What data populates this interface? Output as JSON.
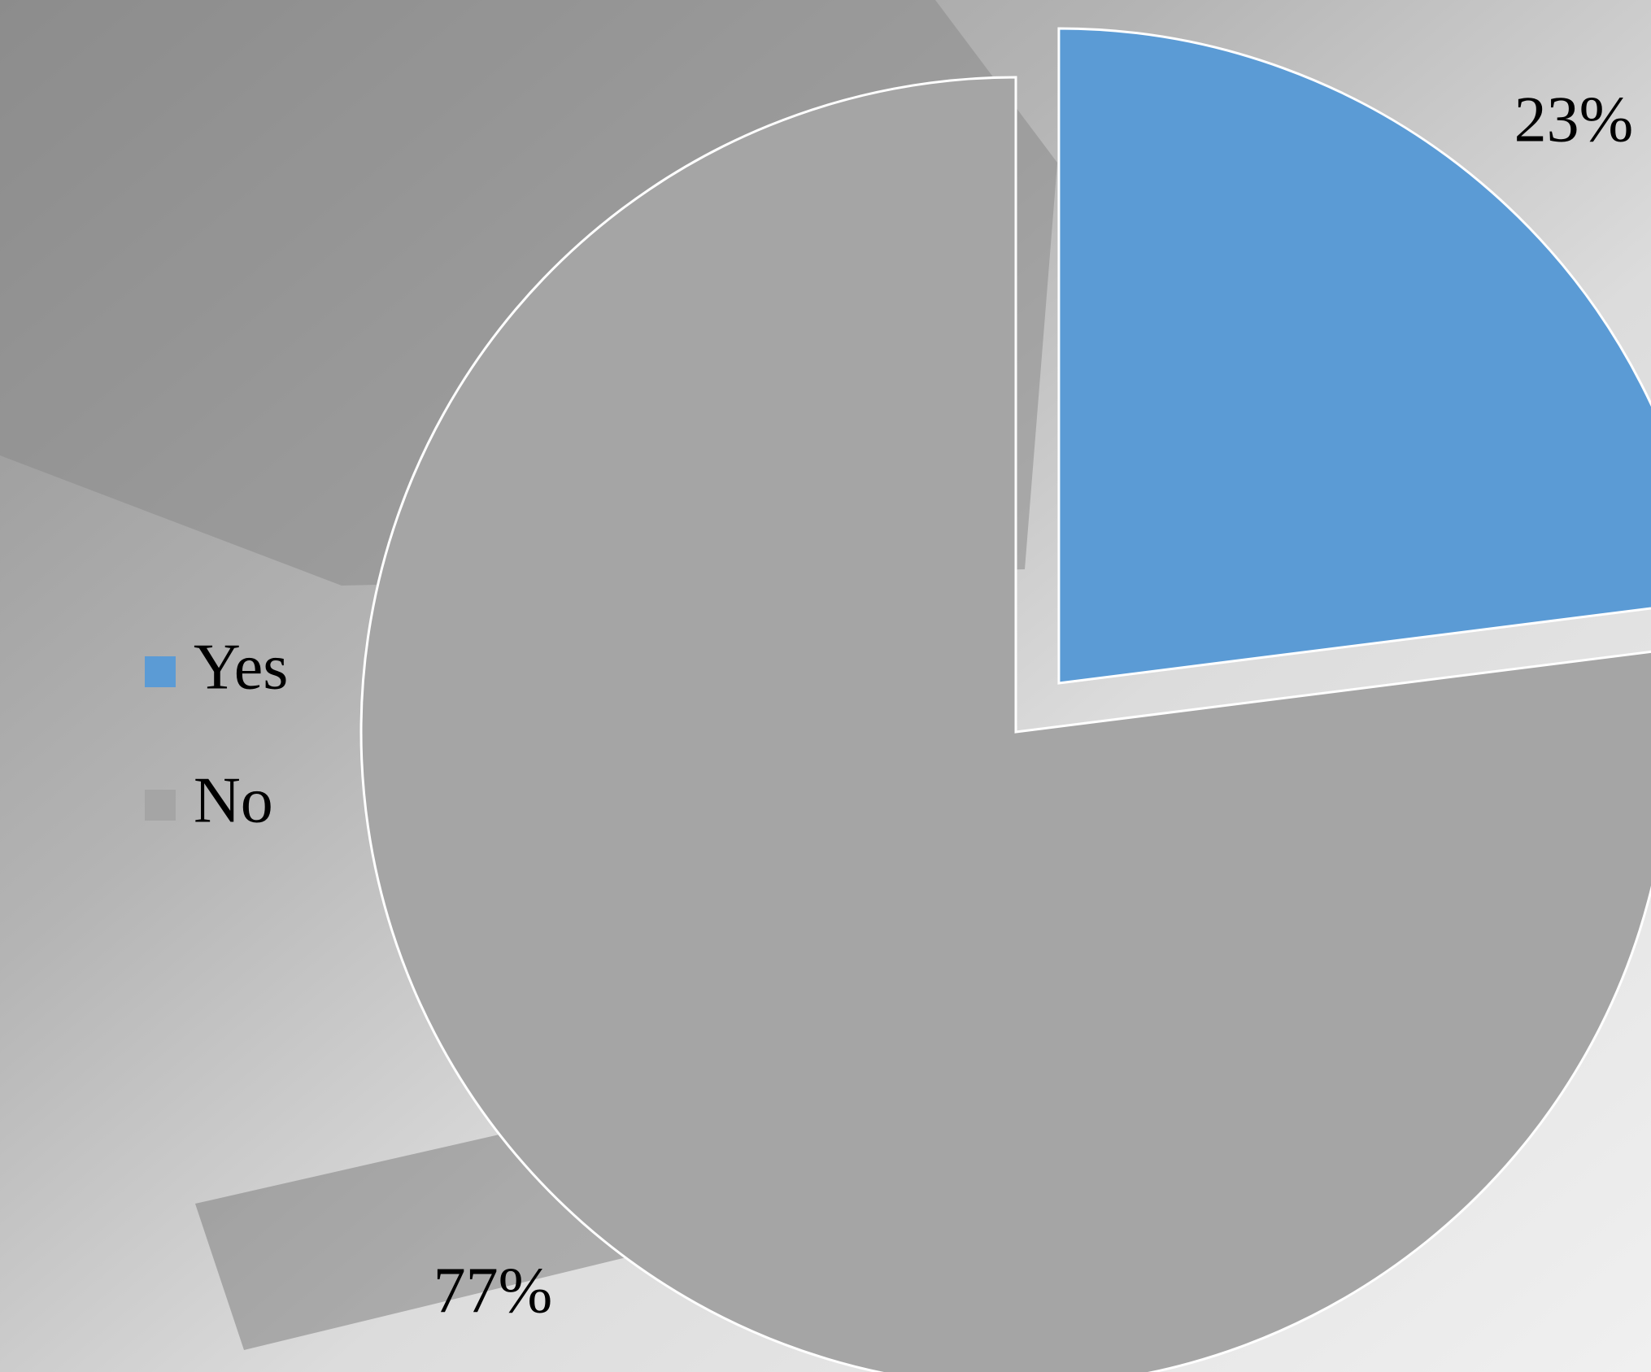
{
  "chart_data": {
    "type": "pie",
    "categories": [
      "Yes",
      "No"
    ],
    "values": [
      23,
      77
    ],
    "value_labels": [
      "23%",
      "77%"
    ],
    "colors": [
      "#5b9bd5",
      "#a5a5a5"
    ],
    "legend": "left"
  }
}
